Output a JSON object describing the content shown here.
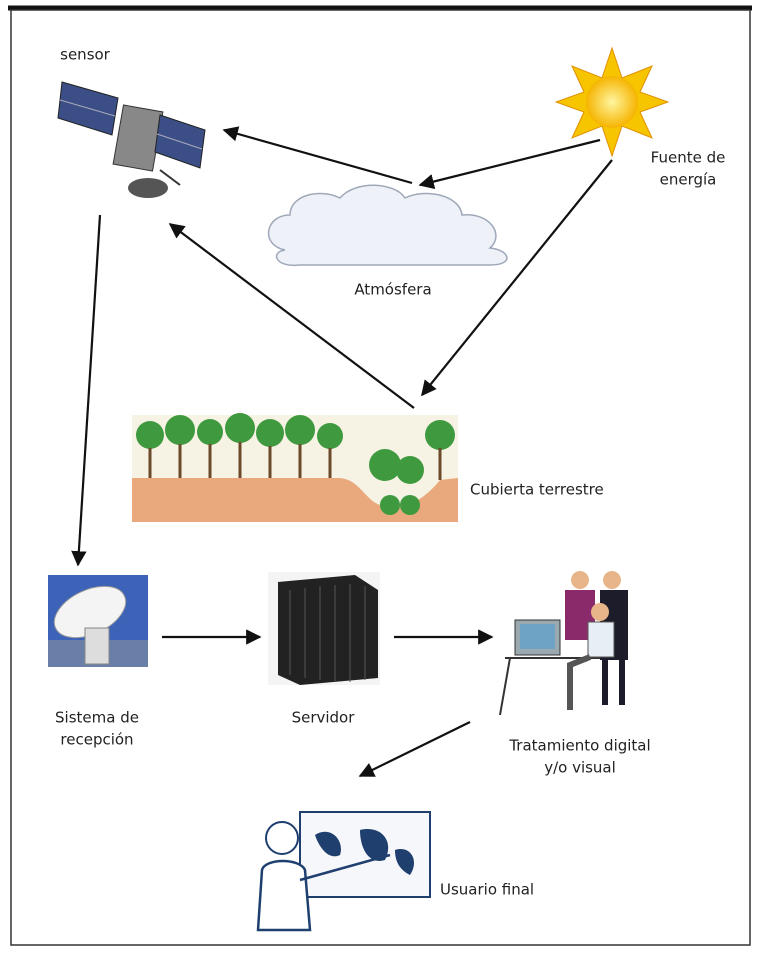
{
  "nodes": [
    {
      "label": [
        "sensor"
      ]
    },
    {
      "label": [
        "Fuente de",
        "energía"
      ]
    },
    {
      "label": [
        "Atmósfera"
      ]
    },
    {
      "label": [
        "Cubierta terrestre"
      ]
    },
    {
      "label": [
        "Sistema de",
        "recepción"
      ]
    },
    {
      "label": [
        "Servidor"
      ]
    },
    {
      "label": [
        "Tratamiento digital",
        "y/o visual"
      ]
    },
    {
      "label": [
        "Usuario final"
      ]
    }
  ]
}
